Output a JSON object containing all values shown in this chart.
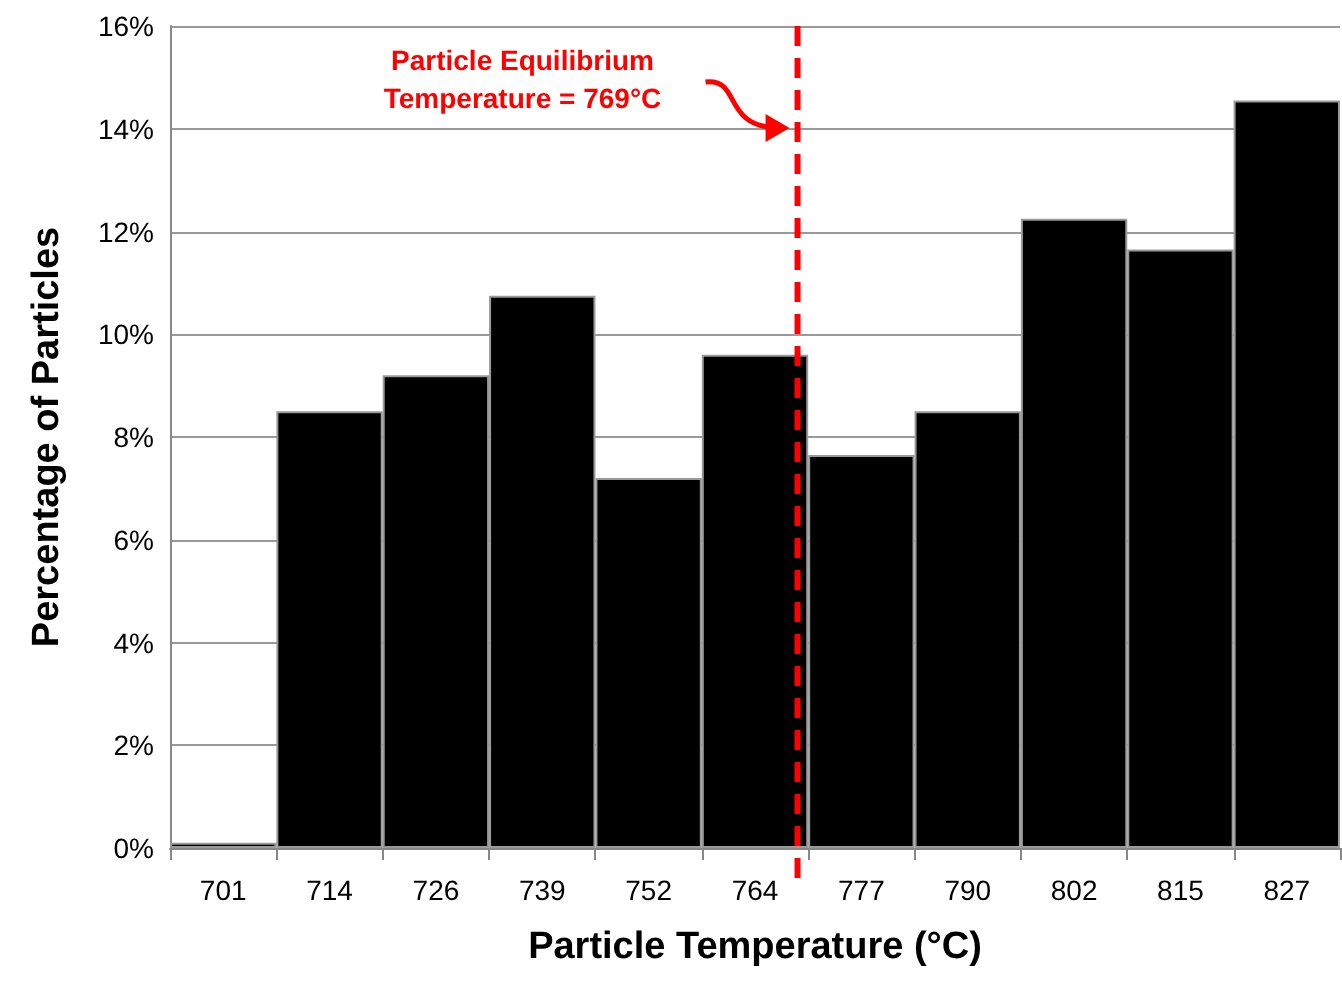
{
  "chart_data": {
    "type": "bar",
    "xlabel": "Particle Temperature (°C)",
    "ylabel": "Percentage of Particles",
    "categories": [
      "701",
      "714",
      "726",
      "739",
      "752",
      "764",
      "777",
      "790",
      "802",
      "815",
      "827"
    ],
    "values": [
      0.1,
      8.5,
      9.2,
      10.75,
      7.2,
      9.6,
      7.65,
      8.5,
      12.25,
      11.65,
      14.55
    ],
    "color": "#000000",
    "ylim": [
      0,
      16
    ],
    "yticks": [
      {
        "value": 0,
        "label": "0%"
      },
      {
        "value": 2,
        "label": "2%"
      },
      {
        "value": 4,
        "label": "4%"
      },
      {
        "value": 6,
        "label": "6%"
      },
      {
        "value": 8,
        "label": "8%"
      },
      {
        "value": 10,
        "label": "10%"
      },
      {
        "value": 12,
        "label": "12%"
      },
      {
        "value": 14,
        "label": "14%"
      },
      {
        "value": 16,
        "label": "16%"
      }
    ],
    "grid": "y",
    "ref_lines": [
      {
        "axis": "x",
        "value": "764",
        "label": "Particle Equilibrium Temperature = 769°C",
        "color": "#ff0000",
        "line_style": "dashed"
      }
    ]
  }
}
